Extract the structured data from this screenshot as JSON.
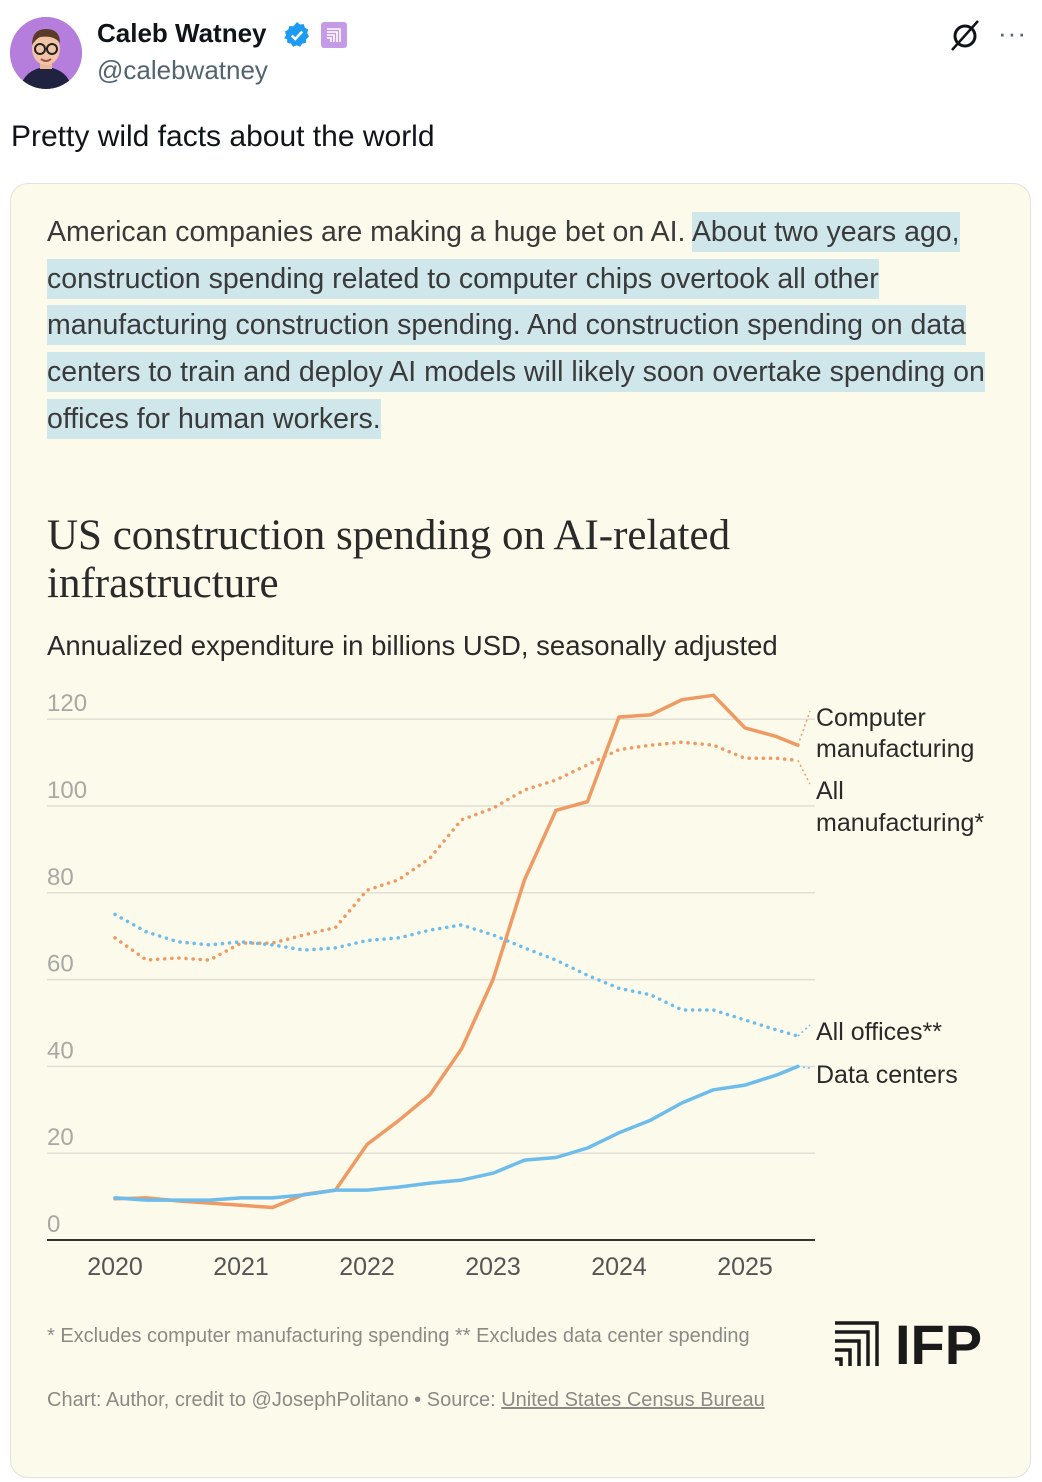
{
  "header": {
    "name": "Caleb Watney",
    "handle": "@calebwatney",
    "icons": [
      "verified-badge-icon",
      "affiliation-badge-icon",
      "grok-icon",
      "more-icon"
    ],
    "more_label": "···"
  },
  "tweet": {
    "text": "Pretty wild facts about the world"
  },
  "card": {
    "paragraph_plain": "American companies are making a huge bet on AI. ",
    "paragraph_highlighted": "About two years ago, construction spending related to computer chips overtook all other manufacturing construction spending. And construction spending on data centers to train and deploy AI models will likely soon overtake spending on offices for human workers.",
    "highlight_color": "#cfe6ea",
    "footnote": "* Excludes computer manufacturing spending ** Excludes data center spending",
    "source_prefix": "Chart: Author, credit to @JosephPolitano • Source: ",
    "source_link": "United States Census Bureau",
    "logo_text": "IFP"
  },
  "chart_data": {
    "type": "line",
    "title": "US construction spending on AI-related infrastructure",
    "subtitle": "Annualized expenditure in billions USD, seasonally adjusted",
    "xlabel": "",
    "ylabel": "",
    "xlim": [
      2020,
      2025.5
    ],
    "ylim": [
      0,
      125
    ],
    "x_ticks": [
      "2020",
      "2021",
      "2022",
      "2023",
      "2024",
      "2025"
    ],
    "y_ticks": [
      "0",
      "20",
      "40",
      "60",
      "80",
      "100",
      "120"
    ],
    "grid": "horizontal",
    "legend": "direct labels right",
    "x": [
      2020.0,
      2020.25,
      2020.5,
      2020.75,
      2021.0,
      2021.25,
      2021.5,
      2021.75,
      2022.0,
      2022.25,
      2022.5,
      2022.75,
      2023.0,
      2023.25,
      2023.5,
      2023.75,
      2024.0,
      2024.25,
      2024.5,
      2024.75,
      2025.0,
      2025.25,
      2025.42
    ],
    "series": [
      {
        "name": "Computer manufacturing",
        "label_lines": [
          "Computer",
          "manufacturing"
        ],
        "color": "#ef9a62",
        "style": "solid",
        "values": [
          9.5,
          9.7,
          9,
          8.5,
          8,
          7.5,
          10.5,
          11.5,
          22,
          27.5,
          33.5,
          44,
          60,
          83,
          99,
          101,
          120.5,
          121,
          124.5,
          125.5,
          118,
          116,
          114
        ]
      },
      {
        "name": "All manufacturing*",
        "label_lines": [
          "All",
          "manufacturing*"
        ],
        "color": "#ef9a62",
        "style": "dotted",
        "values": [
          69.6,
          64.5,
          65,
          64.5,
          68.4,
          68.4,
          70.3,
          72,
          80.6,
          83,
          88,
          96.8,
          99.5,
          103.7,
          106,
          109.5,
          113,
          114,
          114.7,
          114,
          111,
          111,
          110.5
        ]
      },
      {
        "name": "All offices**",
        "label_lines": [
          "All offices**"
        ],
        "color": "#6cbcec",
        "style": "dotted",
        "values": [
          75,
          71,
          68.7,
          68,
          68.7,
          68,
          66.8,
          67.3,
          69,
          69.6,
          71.4,
          72.6,
          70.3,
          67.3,
          64.5,
          61,
          58,
          56.5,
          53,
          53,
          50.7,
          48.4,
          47
        ]
      },
      {
        "name": "Data centers",
        "label_lines": [
          "Data centers"
        ],
        "color": "#6cbcec",
        "style": "solid",
        "values": [
          9.7,
          9.2,
          9.2,
          9.2,
          9.7,
          9.7,
          10.4,
          11.5,
          11.5,
          12.2,
          13.1,
          13.8,
          15.4,
          18.4,
          19,
          21.2,
          24.7,
          27.6,
          31.6,
          34.6,
          35.7,
          38,
          40
        ]
      }
    ]
  }
}
